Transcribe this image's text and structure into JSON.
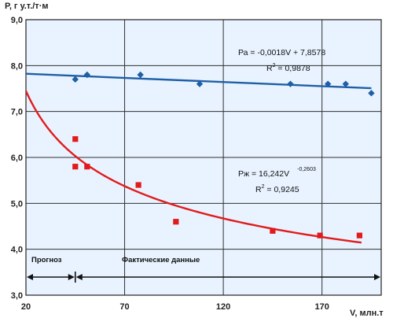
{
  "chart_data": {
    "type": "scatter",
    "xlabel": "V, млн.т",
    "ylabel": "Р, г у.т./т·м",
    "xlim": [
      20,
      200
    ],
    "ylim": [
      3.0,
      9.0
    ],
    "x_ticks": [
      20,
      70,
      120,
      170
    ],
    "y_ticks": [
      "3,0",
      "4,0",
      "5,0",
      "6,0",
      "7,0",
      "8,0",
      "9,0"
    ],
    "grid": true,
    "series": [
      {
        "color": "#1f5fa6",
        "marker": "diamond",
        "points": [
          [
            45,
            7.7
          ],
          [
            51,
            7.8
          ],
          [
            78,
            7.8
          ],
          [
            108,
            7.6
          ],
          [
            154,
            7.6
          ],
          [
            173,
            7.6
          ],
          [
            182,
            7.6
          ],
          [
            195,
            7.4
          ]
        ],
        "trendline": {
          "type": "linear",
          "slope": -0.0018,
          "intercept": 7.8578,
          "x_range": [
            20,
            195
          ],
          "color": "#1f5fa6"
        }
      },
      {
        "color": "#e11b1b",
        "marker": "square",
        "points": [
          [
            45,
            6.4
          ],
          [
            45,
            5.8
          ],
          [
            51,
            5.8
          ],
          [
            77,
            5.4
          ],
          [
            96,
            4.6
          ],
          [
            145,
            4.4
          ],
          [
            169,
            4.3
          ],
          [
            189,
            4.3
          ]
        ],
        "trendline": {
          "type": "power",
          "coef": 16.242,
          "exponent": -0.2603,
          "x_range": [
            20,
            190
          ],
          "color": "#e11b1b"
        }
      }
    ],
    "annotations": {
      "blue_equation": "Ра = -0,0018V + 7,8578",
      "blue_r2_base": "R",
      "blue_r2_exp": "2",
      "blue_r2_value": " = 0,9878",
      "red_equation_base": "Рж = 16,242V",
      "red_equation_exp": "-0,2603",
      "red_r2_base": "R",
      "red_r2_exp": "2",
      "red_r2_value": " = 0,9245"
    },
    "regions": {
      "forecast": {
        "label": "Прогноз",
        "x_range": [
          20,
          45
        ]
      },
      "actual": {
        "label": "Фактические данные",
        "x_range": [
          45,
          200
        ]
      }
    }
  }
}
